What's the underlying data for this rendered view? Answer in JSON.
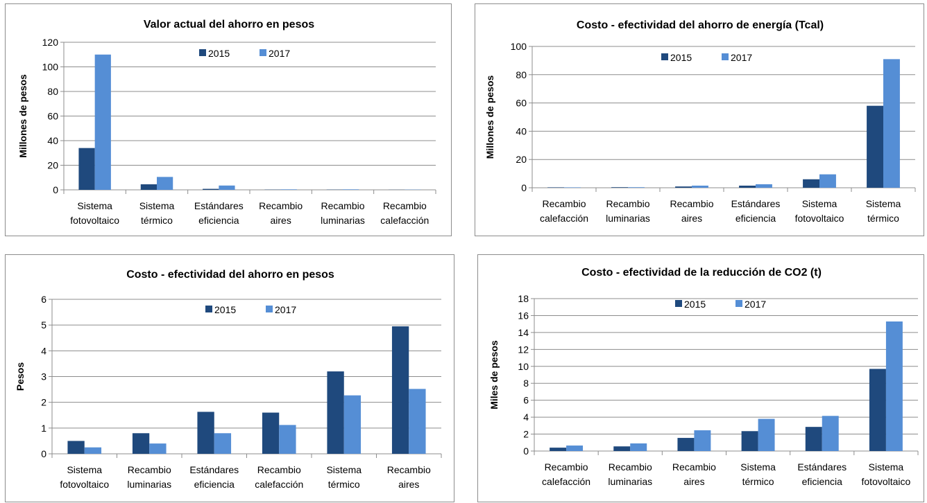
{
  "chart_data": [
    {
      "type": "bar",
      "title": "Valor actual del ahorro en pesos",
      "xlabel": "",
      "ylabel": "Millones de pesos",
      "ylim": [
        0,
        120
      ],
      "yticks": [
        0,
        20,
        40,
        60,
        80,
        100,
        120
      ],
      "grid": true,
      "legend": "top-center",
      "categories": [
        [
          "Sistema",
          "fotovoltaico"
        ],
        [
          "Sistema",
          "térmico"
        ],
        [
          "Estándares",
          "eficiencia"
        ],
        [
          "Recambio",
          "aires"
        ],
        [
          "Recambio",
          "luminarias"
        ],
        [
          "Recambio",
          "calefacción"
        ]
      ],
      "series": [
        {
          "name": "2015",
          "color": "#1f497d",
          "values": [
            34,
            4.5,
            0.8,
            0.2,
            0.2,
            0.1
          ]
        },
        {
          "name": "2017",
          "color": "#558ed5",
          "values": [
            110,
            10.5,
            3.5,
            0.4,
            0.4,
            0.2
          ]
        }
      ]
    },
    {
      "type": "bar",
      "title": "Costo - efectividad del ahorro de energía (Tcal)",
      "xlabel": "",
      "ylabel": "Millones de pesos",
      "ylim": [
        0,
        100
      ],
      "yticks": [
        0,
        20,
        40,
        60,
        80,
        100
      ],
      "grid": true,
      "legend": "top-center",
      "categories": [
        [
          "Recambio",
          "calefacción"
        ],
        [
          "Recambio",
          "luminarias"
        ],
        [
          "Recambio",
          "aires"
        ],
        [
          "Estándares",
          "eficiencia"
        ],
        [
          "Sistema",
          "fotovoltaico"
        ],
        [
          "Sistema",
          "térmico"
        ]
      ],
      "series": [
        {
          "name": "2015",
          "color": "#1f497d",
          "values": [
            0.3,
            0.4,
            0.9,
            1.5,
            6,
            58
          ]
        },
        {
          "name": "2017",
          "color": "#558ed5",
          "values": [
            0.3,
            0.4,
            1.5,
            2.5,
            9.5,
            91
          ]
        }
      ]
    },
    {
      "type": "bar",
      "title": "Costo - efectividad del ahorro en pesos",
      "xlabel": "",
      "ylabel": "Pesos",
      "ylim": [
        0,
        6
      ],
      "yticks": [
        0,
        1,
        2,
        3,
        4,
        5,
        6
      ],
      "grid": true,
      "legend": "top-center",
      "categories": [
        [
          "Sistema",
          "fotovoltaico"
        ],
        [
          "Recambio",
          "luminarias"
        ],
        [
          "Estándares",
          "eficiencia"
        ],
        [
          "Recambio",
          "calefacción"
        ],
        [
          "Sistema",
          "térmico"
        ],
        [
          "Recambio",
          "aires"
        ]
      ],
      "series": [
        {
          "name": "2015",
          "color": "#1f497d",
          "values": [
            0.5,
            0.8,
            1.63,
            1.6,
            3.2,
            4.95
          ]
        },
        {
          "name": "2017",
          "color": "#558ed5",
          "values": [
            0.25,
            0.4,
            0.8,
            1.12,
            2.27,
            2.52
          ]
        }
      ]
    },
    {
      "type": "bar",
      "title": "Costo - efectividad de la reducción de CO2 (t)",
      "xlabel": "",
      "ylabel": "Miles de pesos",
      "ylim": [
        0,
        18
      ],
      "yticks": [
        0,
        2,
        4,
        6,
        8,
        10,
        12,
        14,
        16,
        18
      ],
      "grid": true,
      "legend": "top-center",
      "categories": [
        [
          "Recambio",
          "calefacción"
        ],
        [
          "Recambio",
          "luminarias"
        ],
        [
          "Recambio",
          "aires"
        ],
        [
          "Sistema",
          "térmico"
        ],
        [
          "Estándares",
          "eficiencia"
        ],
        [
          "Sistema",
          "fotovoltaico"
        ]
      ],
      "series": [
        {
          "name": "2015",
          "color": "#1f497d",
          "values": [
            0.4,
            0.55,
            1.55,
            2.35,
            2.85,
            9.7
          ]
        },
        {
          "name": "2017",
          "color": "#558ed5",
          "values": [
            0.65,
            0.9,
            2.45,
            3.8,
            4.15,
            15.3
          ]
        }
      ]
    }
  ]
}
